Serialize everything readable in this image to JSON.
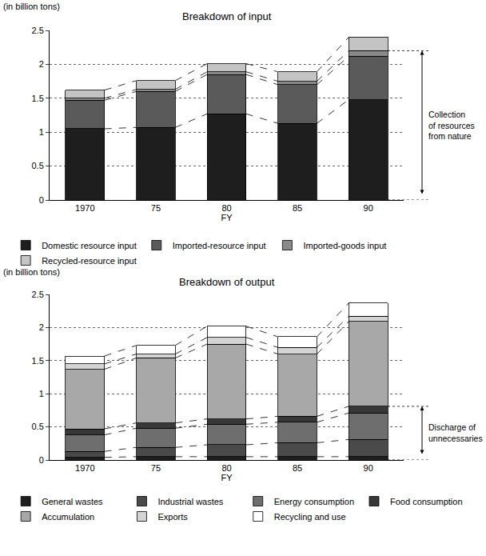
{
  "chart_data": [
    {
      "type": "bar",
      "title": "Breakdown of input",
      "ylabel": "(in billion tons)",
      "xlabel": "FY",
      "categories": [
        "1970",
        "75",
        "80",
        "85",
        "90"
      ],
      "stacked": true,
      "grid": true,
      "legend": "bottom",
      "ylim": [
        0,
        2.5
      ],
      "yticks": [
        0,
        0.5,
        1,
        1.5,
        2,
        2.5
      ],
      "series": [
        {
          "name": "Domestic resource input",
          "color": "#1e1e1e",
          "values": [
            1.05,
            1.07,
            1.27,
            1.13,
            1.48
          ]
        },
        {
          "name": "Imported-resource input",
          "color": "#5a5a5a",
          "values": [
            0.42,
            0.53,
            0.58,
            0.57,
            0.64
          ]
        },
        {
          "name": "Imported-goods input",
          "color": "#8a8a8a",
          "values": [
            0.03,
            0.03,
            0.04,
            0.05,
            0.08
          ]
        },
        {
          "name": "Recycled-resource input",
          "color": "#c4c4c4",
          "values": [
            0.12,
            0.13,
            0.12,
            0.14,
            0.2
          ]
        }
      ],
      "annotations": [
        {
          "text": "Collection of resources from nature",
          "span": [
            0,
            2.2
          ]
        }
      ]
    },
    {
      "type": "bar",
      "title": "Breakdown of output",
      "ylabel": "(in billion tons)",
      "xlabel": "FY",
      "categories": [
        "1970",
        "75",
        "80",
        "85",
        "90"
      ],
      "stacked": true,
      "grid": true,
      "legend": "bottom",
      "ylim": [
        0,
        2.5
      ],
      "yticks": [
        0,
        0.5,
        1,
        1.5,
        2,
        2.5
      ],
      "series": [
        {
          "name": "General wastes",
          "color": "#1e1e1e",
          "values": [
            0.04,
            0.05,
            0.05,
            0.05,
            0.05
          ]
        },
        {
          "name": "Industrial wastes",
          "color": "#4a4a4a",
          "values": [
            0.09,
            0.14,
            0.18,
            0.21,
            0.26
          ]
        },
        {
          "name": "Energy consumption",
          "color": "#6e6e6e",
          "values": [
            0.25,
            0.29,
            0.31,
            0.31,
            0.4
          ]
        },
        {
          "name": "Food consumption",
          "color": "#383838",
          "values": [
            0.09,
            0.08,
            0.08,
            0.09,
            0.1
          ]
        },
        {
          "name": "Accumulation",
          "color": "#a8a8a8",
          "values": [
            0.9,
            0.98,
            1.13,
            0.94,
            1.28
          ]
        },
        {
          "name": "Exports",
          "color": "#d4d4d4",
          "values": [
            0.08,
            0.06,
            0.1,
            0.1,
            0.08
          ]
        },
        {
          "name": "Recycling and use",
          "color": "#ffffff",
          "values": [
            0.12,
            0.13,
            0.17,
            0.16,
            0.2
          ]
        }
      ],
      "annotations": [
        {
          "text": "Discharge of unnecessaries",
          "span": [
            0,
            0.81
          ]
        }
      ]
    }
  ]
}
